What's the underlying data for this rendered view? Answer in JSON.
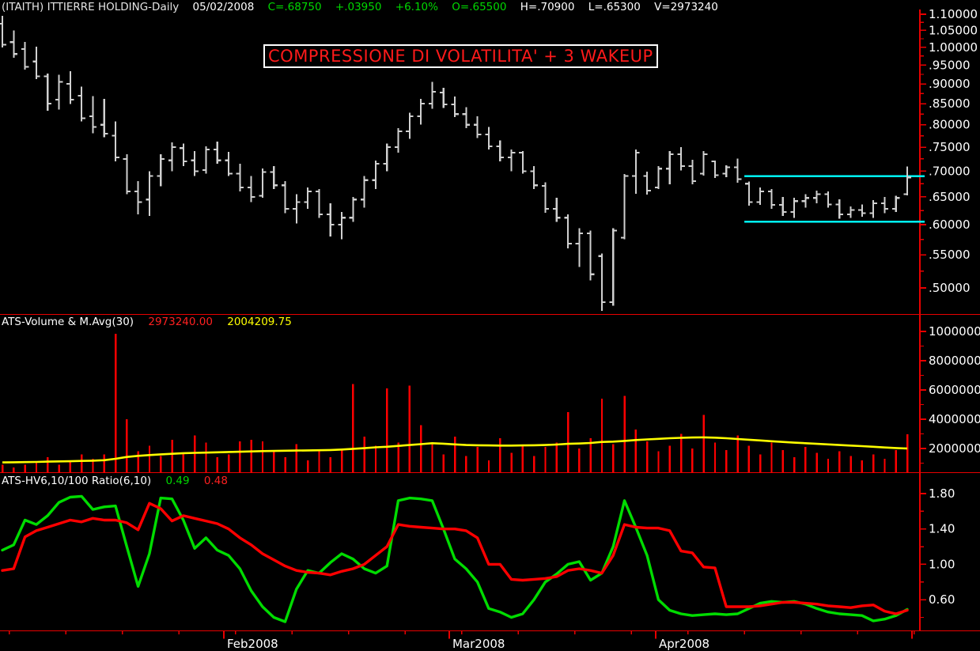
{
  "header": {
    "symbol_title": "(ITAITH) ITTIERRE HOLDING-Daily",
    "date": "05/02/2008",
    "close": "C=.68750",
    "change": "+.03950",
    "change_pct": "+6.10%",
    "open": "O=.65500",
    "high": "H=.70900",
    "low": "L=.65300",
    "volume": "V=2973240"
  },
  "annotation": {
    "text": "COMPRESSIONE DI VOLATILITA' + 3 WAKEUP"
  },
  "volume_pane": {
    "label": "ATS-Volume & M.Avg(30)",
    "last_volume": "2973240.00",
    "last_ma": "2004209.75"
  },
  "ratio_pane": {
    "label": "ATS-HV6,10/100 Ratio(6,10)",
    "last_green": "0.49",
    "last_red": "0.48"
  },
  "colors": {
    "bar_gray": "#d0d0d0",
    "volume_red": "#ff0000",
    "ma_yellow": "#ffff00",
    "ratio_green": "#00dc00",
    "ratio_red": "#ff0000",
    "axis_red": "#e80000",
    "label_white": "#ffffff",
    "cyan": "#00ffff",
    "annotation_red": "#ff1a1a"
  },
  "chart_data": [
    {
      "type": "ohlc",
      "title": "(ITAITH) ITTIERRE HOLDING-Daily",
      "yscale": "log",
      "ylim": [
        0.46,
        1.113
      ],
      "y_ticks": [
        {
          "v": 1.1,
          "label": "1.10000"
        },
        {
          "v": 1.05,
          "label": "1.05000"
        },
        {
          "v": 1.0,
          "label": "1.00000"
        },
        {
          "v": 0.95,
          "label": ".95000"
        },
        {
          "v": 0.9,
          "label": ".90000"
        },
        {
          "v": 0.85,
          "label": ".85000"
        },
        {
          "v": 0.8,
          "label": ".80000"
        },
        {
          "v": 0.75,
          "label": ".75000"
        },
        {
          "v": 0.7,
          "label": ".70000"
        },
        {
          "v": 0.65,
          "label": ".65000"
        },
        {
          "v": 0.6,
          "label": ".60000"
        },
        {
          "v": 0.55,
          "label": ".55000"
        },
        {
          "v": 0.5,
          "label": ".50000"
        }
      ],
      "month_ticks": [
        {
          "label": "Feb2008",
          "bar": 19.58
        },
        {
          "label": "Mar2008",
          "bar": 39.51
        },
        {
          "label": "Apr2008",
          "bar": 57.76
        },
        {
          "label": "",
          "bar": 80.42
        }
      ],
      "resistance_line": 0.69,
      "support_line": 0.605,
      "trendline_start_bar": 65.6,
      "bars_ohlc": [
        [
          1.07,
          1.095,
          1.0,
          1.008
        ],
        [
          1.015,
          1.05,
          0.97,
          0.981
        ],
        [
          0.995,
          1.016,
          0.938,
          0.945
        ],
        [
          0.96,
          1.002,
          0.913,
          0.92
        ],
        [
          0.92,
          0.927,
          0.833,
          0.85
        ],
        [
          0.86,
          0.924,
          0.836,
          0.905
        ],
        [
          0.9,
          0.934,
          0.849,
          0.86
        ],
        [
          0.87,
          0.893,
          0.808,
          0.815
        ],
        [
          0.82,
          0.869,
          0.781,
          0.795
        ],
        [
          0.8,
          0.862,
          0.772,
          0.78
        ],
        [
          0.775,
          0.808,
          0.72,
          0.728
        ],
        [
          0.725,
          0.735,
          0.655,
          0.66
        ],
        [
          0.66,
          0.68,
          0.618,
          0.64
        ],
        [
          0.645,
          0.7,
          0.615,
          0.69
        ],
        [
          0.69,
          0.735,
          0.67,
          0.725
        ],
        [
          0.722,
          0.76,
          0.7,
          0.75
        ],
        [
          0.748,
          0.758,
          0.71,
          0.72
        ],
        [
          0.722,
          0.742,
          0.69,
          0.7
        ],
        [
          0.702,
          0.752,
          0.695,
          0.745
        ],
        [
          0.745,
          0.762,
          0.715,
          0.722
        ],
        [
          0.722,
          0.74,
          0.69,
          0.695
        ],
        [
          0.695,
          0.715,
          0.66,
          0.668
        ],
        [
          0.668,
          0.69,
          0.64,
          0.65
        ],
        [
          0.652,
          0.705,
          0.648,
          0.698
        ],
        [
          0.698,
          0.71,
          0.665,
          0.672
        ],
        [
          0.672,
          0.68,
          0.62,
          0.628
        ],
        [
          0.628,
          0.655,
          0.602,
          0.64
        ],
        [
          0.64,
          0.668,
          0.628,
          0.66
        ],
        [
          0.66,
          0.665,
          0.612,
          0.618
        ],
        [
          0.618,
          0.638,
          0.58,
          0.6
        ],
        [
          0.6,
          0.622,
          0.575,
          0.612
        ],
        [
          0.612,
          0.65,
          0.605,
          0.645
        ],
        [
          0.645,
          0.69,
          0.63,
          0.682
        ],
        [
          0.682,
          0.722,
          0.665,
          0.715
        ],
        [
          0.715,
          0.758,
          0.7,
          0.75
        ],
        [
          0.75,
          0.792,
          0.738,
          0.785
        ],
        [
          0.785,
          0.828,
          0.768,
          0.82
        ],
        [
          0.82,
          0.862,
          0.8,
          0.85
        ],
        [
          0.85,
          0.905,
          0.838,
          0.88
        ],
        [
          0.878,
          0.89,
          0.84,
          0.848
        ],
        [
          0.848,
          0.868,
          0.818,
          0.825
        ],
        [
          0.825,
          0.842,
          0.792,
          0.8
        ],
        [
          0.8,
          0.82,
          0.77,
          0.778
        ],
        [
          0.778,
          0.795,
          0.745,
          0.752
        ],
        [
          0.752,
          0.765,
          0.72,
          0.728
        ],
        [
          0.728,
          0.745,
          0.7,
          0.738
        ],
        [
          0.738,
          0.742,
          0.695,
          0.7
        ],
        [
          0.7,
          0.71,
          0.665,
          0.672
        ],
        [
          0.671,
          0.678,
          0.621,
          0.628
        ],
        [
          0.628,
          0.648,
          0.605,
          0.612
        ],
        [
          0.612,
          0.618,
          0.56,
          0.568
        ],
        [
          0.568,
          0.594,
          0.531,
          0.585
        ],
        [
          0.585,
          0.59,
          0.511,
          0.52
        ],
        [
          0.548,
          0.552,
          0.468,
          0.48
        ],
        [
          0.48,
          0.594,
          0.475,
          0.59
        ],
        [
          0.578,
          0.694,
          0.575,
          0.69
        ],
        [
          0.69,
          0.745,
          0.656,
          0.738
        ],
        [
          0.69,
          0.699,
          0.654,
          0.662
        ],
        [
          0.668,
          0.71,
          0.665,
          0.705
        ],
        [
          0.705,
          0.742,
          0.674,
          0.735
        ],
        [
          0.735,
          0.75,
          0.701,
          0.71
        ],
        [
          0.71,
          0.723,
          0.674,
          0.68
        ],
        [
          0.695,
          0.742,
          0.691,
          0.735
        ],
        [
          0.72,
          0.722,
          0.686,
          0.692
        ],
        [
          0.695,
          0.712,
          0.688,
          0.708
        ],
        [
          0.708,
          0.726,
          0.677,
          0.684
        ],
        [
          0.675,
          0.679,
          0.634,
          0.64
        ],
        [
          0.64,
          0.668,
          0.635,
          0.66
        ],
        [
          0.66,
          0.665,
          0.628,
          0.635
        ],
        [
          0.635,
          0.65,
          0.615,
          0.622
        ],
        [
          0.622,
          0.648,
          0.612,
          0.642
        ],
        [
          0.642,
          0.655,
          0.63,
          0.648
        ],
        [
          0.648,
          0.662,
          0.638,
          0.655
        ],
        [
          0.655,
          0.66,
          0.63,
          0.636
        ],
        [
          0.636,
          0.645,
          0.61,
          0.618
        ],
        [
          0.618,
          0.632,
          0.612,
          0.626
        ],
        [
          0.626,
          0.636,
          0.614,
          0.62
        ],
        [
          0.62,
          0.644,
          0.612,
          0.638
        ],
        [
          0.638,
          0.65,
          0.62,
          0.628
        ],
        [
          0.628,
          0.652,
          0.622,
          0.648
        ],
        [
          0.655,
          0.709,
          0.653,
          0.6875
        ]
      ]
    },
    {
      "type": "bar",
      "title": "ATS-Volume & M.Avg(30)",
      "ylabel": "Volume",
      "y_ticks": [
        {
          "v": 10,
          "label": "10000000"
        },
        {
          "v": 8,
          "label": "8000000"
        },
        {
          "v": 6,
          "label": "6000000"
        },
        {
          "v": 4,
          "label": "4000000"
        },
        {
          "v": 2,
          "label": "2000000"
        }
      ],
      "values_millions": [
        0.9,
        0.7,
        0.9,
        1.1,
        1.4,
        0.9,
        1.2,
        1.6,
        1.3,
        1.6,
        9.85,
        4.0,
        1.8,
        2.2,
        1.5,
        2.6,
        1.7,
        2.9,
        2.4,
        1.4,
        1.6,
        2.5,
        2.6,
        2.5,
        1.9,
        1.4,
        2.3,
        1.2,
        1.8,
        1.4,
        2.0,
        6.4,
        2.8,
        2.2,
        6.1,
        2.4,
        6.3,
        3.6,
        2.3,
        1.6,
        2.8,
        1.5,
        2.1,
        1.2,
        2.7,
        1.7,
        2.2,
        1.5,
        2.1,
        2.4,
        4.5,
        2.0,
        2.7,
        5.4,
        2.3,
        5.6,
        3.3,
        2.5,
        1.8,
        2.2,
        3.0,
        2.0,
        4.3,
        2.4,
        1.9,
        2.9,
        2.2,
        1.6,
        2.4,
        1.9,
        1.4,
        2.1,
        1.7,
        1.3,
        1.8,
        1.5,
        1.2,
        1.6,
        1.3,
        1.9,
        2.97
      ],
      "ma30_millions": [
        1.05,
        1.06,
        1.07,
        1.08,
        1.1,
        1.12,
        1.13,
        1.15,
        1.17,
        1.2,
        1.3,
        1.42,
        1.5,
        1.55,
        1.6,
        1.64,
        1.68,
        1.7,
        1.72,
        1.74,
        1.76,
        1.78,
        1.8,
        1.82,
        1.83,
        1.85,
        1.86,
        1.87,
        1.88,
        1.9,
        1.93,
        1.98,
        2.02,
        2.08,
        2.12,
        2.18,
        2.24,
        2.3,
        2.36,
        2.33,
        2.28,
        2.24,
        2.22,
        2.21,
        2.2,
        2.2,
        2.21,
        2.22,
        2.24,
        2.27,
        2.32,
        2.34,
        2.38,
        2.45,
        2.47,
        2.52,
        2.58,
        2.62,
        2.66,
        2.7,
        2.73,
        2.75,
        2.76,
        2.74,
        2.7,
        2.65,
        2.6,
        2.55,
        2.5,
        2.45,
        2.4,
        2.36,
        2.32,
        2.28,
        2.24,
        2.2,
        2.16,
        2.12,
        2.07,
        2.03,
        2.0
      ]
    },
    {
      "type": "line",
      "title": "ATS-HV6,10/100 Ratio(6,10)",
      "ylim": [
        0.25,
        1.9
      ],
      "y_ticks": [
        {
          "v": 1.8,
          "label": "1.80"
        },
        {
          "v": 1.4,
          "label": "1.40"
        },
        {
          "v": 1.0,
          "label": "1.00"
        },
        {
          "v": 0.6,
          "label": "0.60"
        }
      ],
      "series": [
        {
          "name": "HV6-ratio",
          "color_key": "ratio_green",
          "values": [
            1.16,
            1.22,
            1.5,
            1.45,
            1.55,
            1.7,
            1.76,
            1.77,
            1.62,
            1.65,
            1.66,
            1.2,
            0.75,
            1.12,
            1.75,
            1.74,
            1.5,
            1.18,
            1.3,
            1.16,
            1.1,
            0.95,
            0.7,
            0.52,
            0.4,
            0.35,
            0.72,
            0.93,
            0.9,
            1.02,
            1.12,
            1.06,
            0.95,
            0.9,
            0.98,
            1.72,
            1.75,
            1.74,
            1.72,
            1.4,
            1.06,
            0.95,
            0.8,
            0.5,
            0.46,
            0.4,
            0.44,
            0.6,
            0.8,
            0.89,
            1.0,
            1.03,
            0.82,
            0.9,
            1.2,
            1.72,
            1.42,
            1.1,
            0.6,
            0.48,
            0.44,
            0.42,
            0.43,
            0.44,
            0.43,
            0.44,
            0.5,
            0.56,
            0.58,
            0.57,
            0.58,
            0.55,
            0.5,
            0.46,
            0.44,
            0.43,
            0.42,
            0.36,
            0.38,
            0.42,
            0.49
          ]
        },
        {
          "name": "HV10-ratio",
          "color_key": "ratio_red",
          "values": [
            0.93,
            0.95,
            1.31,
            1.38,
            1.42,
            1.46,
            1.5,
            1.48,
            1.52,
            1.5,
            1.5,
            1.47,
            1.39,
            1.69,
            1.63,
            1.49,
            1.55,
            1.52,
            1.49,
            1.46,
            1.4,
            1.3,
            1.22,
            1.12,
            1.05,
            0.98,
            0.93,
            0.91,
            0.9,
            0.88,
            0.92,
            0.95,
            1.0,
            1.1,
            1.2,
            1.45,
            1.43,
            1.42,
            1.41,
            1.4,
            1.4,
            1.38,
            1.3,
            1.0,
            1.0,
            0.83,
            0.82,
            0.83,
            0.84,
            0.86,
            0.93,
            0.95,
            0.93,
            0.9,
            1.1,
            1.45,
            1.42,
            1.41,
            1.41,
            1.38,
            1.15,
            1.13,
            0.97,
            0.96,
            0.52,
            0.52,
            0.52,
            0.53,
            0.55,
            0.57,
            0.57,
            0.56,
            0.55,
            0.53,
            0.52,
            0.51,
            0.53,
            0.54,
            0.47,
            0.44,
            0.48
          ]
        }
      ]
    }
  ]
}
